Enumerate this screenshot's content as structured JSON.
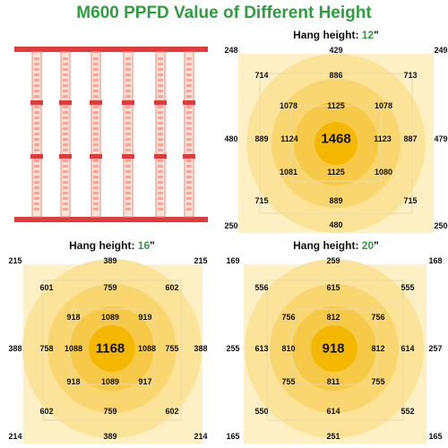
{
  "title": "M600 PPFD Value of Different Height",
  "colors": {
    "title_green": "#2e9e3f",
    "outer": "#fdf0c4",
    "ring1": "#fbe39a",
    "ring2": "#f9d670",
    "ring3": "#f7c948",
    "center": "#f5b800",
    "fixture_red": "#e23a3a",
    "fixture_bar": "#f1a89a"
  },
  "panels": [
    {
      "label": "Hang height: ",
      "height": "12",
      "unit": "\"",
      "corners": {
        "tl": "248",
        "tr": "249",
        "bl": "250",
        "br": "250"
      },
      "edges": {
        "top": "429",
        "bottom": "480",
        "left": "480",
        "right": "479"
      },
      "outer": {
        "tl": "714",
        "tc": "886",
        "tr": "713",
        "ml": "889",
        "mr": "887",
        "bl": "715",
        "bc": "889",
        "br": "715"
      },
      "inner": {
        "tl": "1078",
        "tc": "1125",
        "tr": "1078",
        "ml": "1124",
        "mr": "1123",
        "bl": "1081",
        "bc": "1125",
        "br": "1080"
      },
      "center": "1468"
    },
    {
      "label": "Hang height: ",
      "height": "16",
      "unit": "\"",
      "corners": {
        "tl": "215",
        "tr": "215",
        "bl": "214",
        "br": "214"
      },
      "edges": {
        "top": "389",
        "bottom": "389",
        "left": "388",
        "right": "388"
      },
      "outer": {
        "tl": "601",
        "tc": "759",
        "tr": "602",
        "ml": "758",
        "mr": "755",
        "bl": "602",
        "bc": "759",
        "br": "602"
      },
      "inner": {
        "tl": "918",
        "tc": "1089",
        "tr": "919",
        "ml": "1088",
        "mr": "1088",
        "bl": "918",
        "bc": "1089",
        "br": "917"
      },
      "center": "1168"
    },
    {
      "label": "Hang height: ",
      "height": "20",
      "unit": "\"",
      "corners": {
        "tl": "169",
        "tr": "168",
        "bl": "165",
        "br": "165"
      },
      "edges": {
        "top": "259",
        "bottom": "251",
        "left": "255",
        "right": "257"
      },
      "outer": {
        "tl": "556",
        "tc": "615",
        "tr": "555",
        "ml": "613",
        "mr": "614",
        "bl": "550",
        "bc": "614",
        "br": "552"
      },
      "inner": {
        "tl": "756",
        "tc": "812",
        "tr": "756",
        "ml": "810",
        "mr": "812",
        "bl": "755",
        "bc": "811",
        "br": "755"
      },
      "center": "918"
    }
  ]
}
